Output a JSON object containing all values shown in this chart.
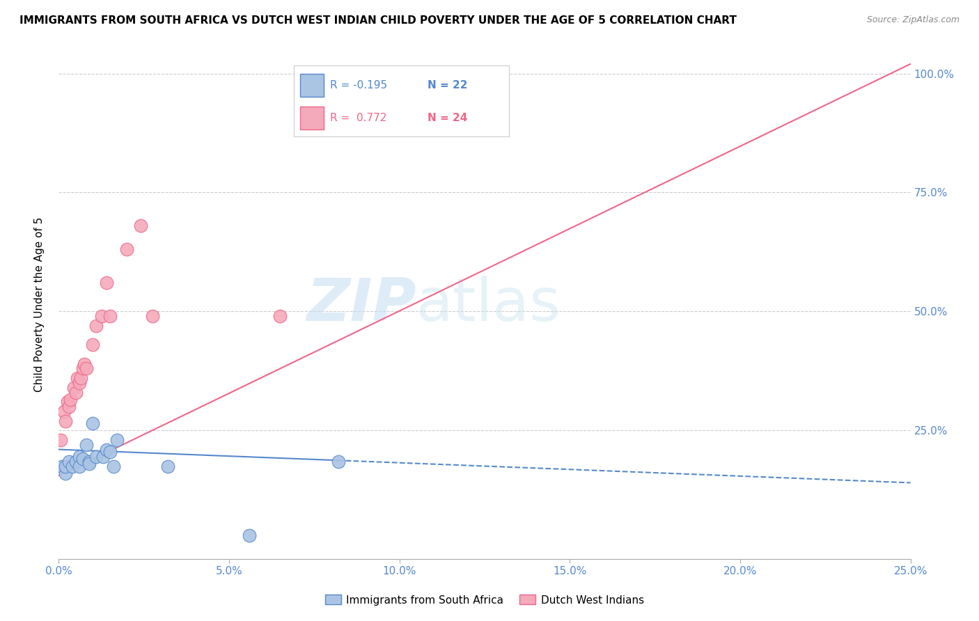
{
  "title": "IMMIGRANTS FROM SOUTH AFRICA VS DUTCH WEST INDIAN CHILD POVERTY UNDER THE AGE OF 5 CORRELATION CHART",
  "source": "Source: ZipAtlas.com",
  "ylabel": "Child Poverty Under the Age of 5",
  "legend_label1": "Immigrants from South Africa",
  "legend_label2": "Dutch West Indians",
  "R1": "-0.195",
  "N1": "22",
  "R2": "0.772",
  "N2": "24",
  "color_blue": "#aac4e4",
  "color_pink": "#f5aabb",
  "line_blue": "#5588cc",
  "line_pink": "#ee6688",
  "watermark_zip": "ZIP",
  "watermark_atlas": "atlas",
  "blue_scatter_x": [
    0.001,
    0.002,
    0.002,
    0.003,
    0.004,
    0.005,
    0.006,
    0.006,
    0.007,
    0.008,
    0.009,
    0.009,
    0.01,
    0.011,
    0.013,
    0.014,
    0.015,
    0.016,
    0.017,
    0.032,
    0.056,
    0.082
  ],
  "blue_scatter_y": [
    0.175,
    0.16,
    0.175,
    0.185,
    0.175,
    0.185,
    0.195,
    0.175,
    0.19,
    0.22,
    0.185,
    0.18,
    0.265,
    0.195,
    0.195,
    0.21,
    0.205,
    0.175,
    0.23,
    0.175,
    0.03,
    0.185
  ],
  "pink_scatter_x": [
    0.0005,
    0.0015,
    0.002,
    0.0025,
    0.003,
    0.0035,
    0.0045,
    0.005,
    0.0055,
    0.006,
    0.0065,
    0.007,
    0.0075,
    0.008,
    0.01,
    0.011,
    0.0125,
    0.014,
    0.015,
    0.02,
    0.024,
    0.0275,
    0.065,
    0.1
  ],
  "pink_scatter_y": [
    0.23,
    0.29,
    0.27,
    0.31,
    0.3,
    0.315,
    0.34,
    0.33,
    0.36,
    0.35,
    0.36,
    0.38,
    0.39,
    0.38,
    0.43,
    0.47,
    0.49,
    0.56,
    0.49,
    0.63,
    0.68,
    0.49,
    0.49,
    1.0
  ],
  "xlim": [
    0.0,
    0.25
  ],
  "ylim": [
    -0.02,
    1.05
  ],
  "blue_line_x0": 0.0,
  "blue_line_x1_solid": 0.082,
  "blue_line_x1": 0.25,
  "blue_line_y0": 0.21,
  "blue_line_y1": 0.14,
  "pink_line_x0": 0.0,
  "pink_line_x1": 0.25,
  "pink_line_y0": 0.155,
  "pink_line_y1": 1.02,
  "y_tick_vals": [
    0.25,
    0.5,
    0.75,
    1.0
  ],
  "y_tick_labels": [
    "25.0%",
    "50.0%",
    "75.0%",
    "100.0%"
  ],
  "x_tick_vals": [
    0.0,
    0.05,
    0.1,
    0.15,
    0.2,
    0.25
  ],
  "x_tick_labels": [
    "0.0%",
    "5.0%",
    "10.0%",
    "15.0%",
    "20.0%",
    "25.0%"
  ]
}
